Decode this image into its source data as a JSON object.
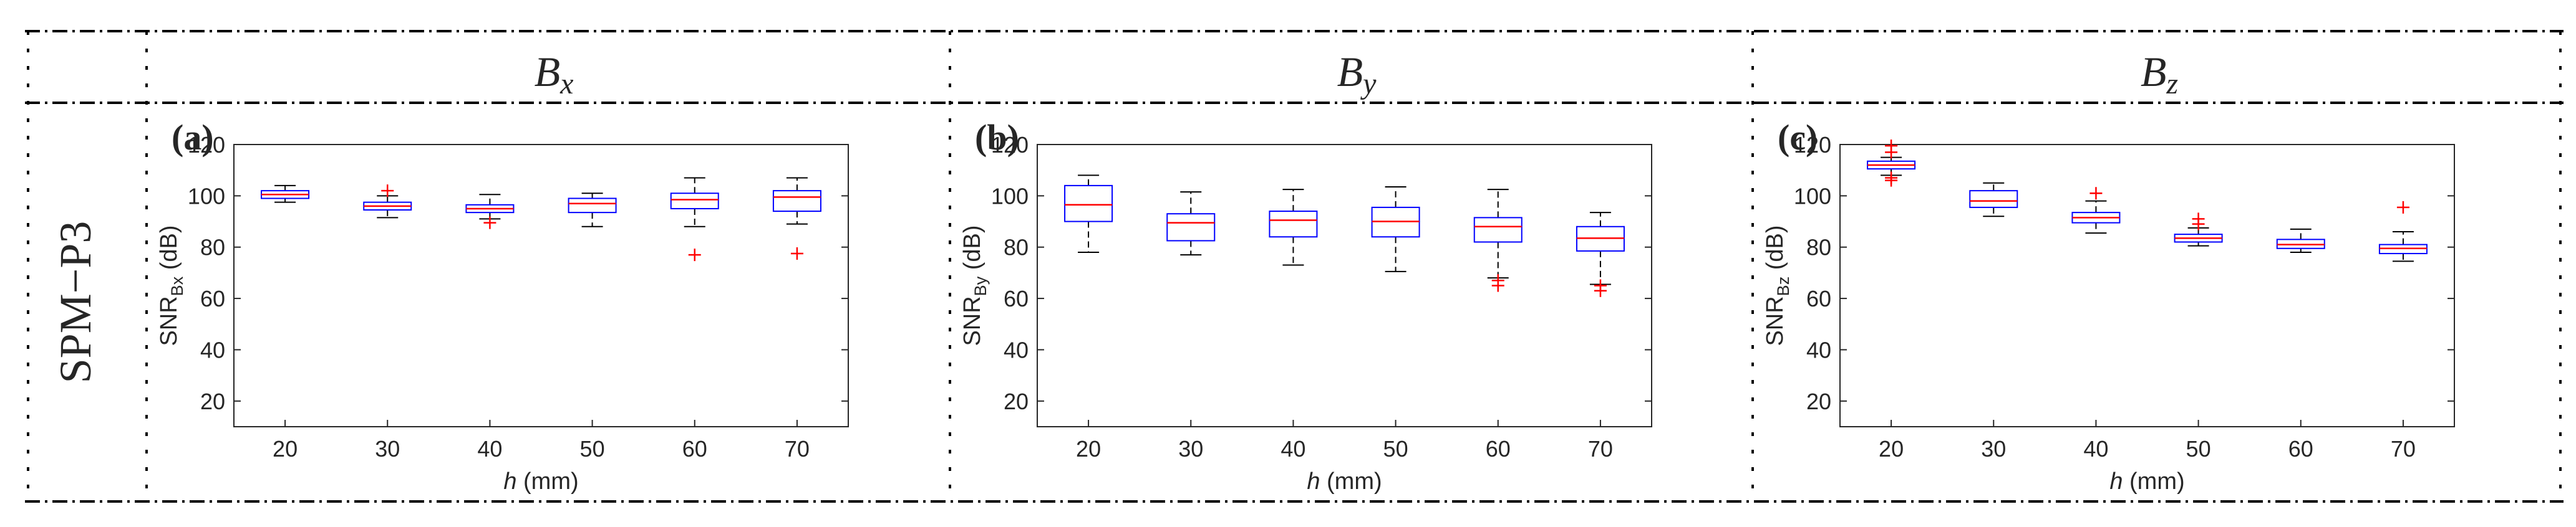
{
  "row_label": "SPM−P3",
  "columns": [
    {
      "header_base": "B",
      "header_sub": "x"
    },
    {
      "header_base": "B",
      "header_sub": "y"
    },
    {
      "header_base": "B",
      "header_sub": "z"
    }
  ],
  "colors": {
    "box": "#0000ff",
    "median": "#ff0000",
    "whisker": "#000000",
    "outlier": "#ff0000",
    "axis": "#262626",
    "border": "#000000"
  },
  "chart_data": [
    {
      "type": "boxplot",
      "panel_label": "(a)",
      "ylabel_base": "SNR",
      "ylabel_sub": "Bx",
      "ylabel_unit": " (dB)",
      "xlabel_var": "h",
      "xlabel_unit": " (mm)",
      "categories": [
        "20",
        "30",
        "40",
        "50",
        "60",
        "70"
      ],
      "ylim": [
        10,
        120
      ],
      "yticks": [
        20,
        40,
        60,
        80,
        100,
        120
      ],
      "boxes": [
        {
          "whislo": 97.5,
          "q1": 99,
          "med": 100.5,
          "q3": 102,
          "whishi": 104,
          "fliers": []
        },
        {
          "whislo": 91.5,
          "q1": 94.5,
          "med": 96,
          "q3": 97.5,
          "whishi": 100,
          "fliers": [
            102
          ]
        },
        {
          "whislo": 91,
          "q1": 93.5,
          "med": 95,
          "q3": 96.5,
          "whishi": 100.5,
          "fliers": [
            89.5
          ]
        },
        {
          "whislo": 88,
          "q1": 93.5,
          "med": 97,
          "q3": 99,
          "whishi": 101,
          "fliers": []
        },
        {
          "whislo": 88,
          "q1": 95,
          "med": 98.5,
          "q3": 101,
          "whishi": 107,
          "fliers": [
            77
          ]
        },
        {
          "whislo": 89,
          "q1": 94,
          "med": 99.5,
          "q3": 102,
          "whishi": 107,
          "fliers": [
            77.5
          ]
        }
      ]
    },
    {
      "type": "boxplot",
      "panel_label": "(b)",
      "ylabel_base": "SNR",
      "ylabel_sub": "By",
      "ylabel_unit": " (dB)",
      "xlabel_var": "h",
      "xlabel_unit": " (mm)",
      "categories": [
        "20",
        "30",
        "40",
        "50",
        "60",
        "70"
      ],
      "ylim": [
        10,
        120
      ],
      "yticks": [
        20,
        40,
        60,
        80,
        100,
        120
      ],
      "boxes": [
        {
          "whislo": 78,
          "q1": 90,
          "med": 96.5,
          "q3": 104,
          "whishi": 108,
          "fliers": []
        },
        {
          "whislo": 77,
          "q1": 82.5,
          "med": 89.5,
          "q3": 93,
          "whishi": 101.5,
          "fliers": []
        },
        {
          "whislo": 73,
          "q1": 84,
          "med": 90.5,
          "q3": 94,
          "whishi": 102.5,
          "fliers": []
        },
        {
          "whislo": 70.5,
          "q1": 84,
          "med": 90,
          "q3": 95.5,
          "whishi": 103.5,
          "fliers": []
        },
        {
          "whislo": 68,
          "q1": 82,
          "med": 88,
          "q3": 91.5,
          "whishi": 102.5,
          "fliers": [
            65,
            67
          ]
        },
        {
          "whislo": 65.5,
          "q1": 78.5,
          "med": 83.5,
          "q3": 88,
          "whishi": 93.5,
          "fliers": [
            63,
            65
          ]
        }
      ]
    },
    {
      "type": "boxplot",
      "panel_label": "(c)",
      "ylabel_base": "SNR",
      "ylabel_sub": "Bz",
      "ylabel_unit": " (dB)",
      "xlabel_var": "h",
      "xlabel_unit": " (mm)",
      "categories": [
        "20",
        "30",
        "40",
        "50",
        "60",
        "70"
      ],
      "ylim": [
        10,
        120
      ],
      "yticks": [
        20,
        40,
        60,
        80,
        100,
        120
      ],
      "boxes": [
        {
          "whislo": 108,
          "q1": 110.5,
          "med": 112,
          "q3": 113.5,
          "whishi": 115,
          "fliers": [
            106,
            107,
            117,
            119.5
          ]
        },
        {
          "whislo": 92,
          "q1": 95.5,
          "med": 98,
          "q3": 102,
          "whishi": 105,
          "fliers": []
        },
        {
          "whislo": 85.5,
          "q1": 89.5,
          "med": 91.5,
          "q3": 93.5,
          "whishi": 98,
          "fliers": [
            101
          ]
        },
        {
          "whislo": 80.5,
          "q1": 82,
          "med": 83.5,
          "q3": 85,
          "whishi": 87.5,
          "fliers": [
            89,
            91
          ]
        },
        {
          "whislo": 78,
          "q1": 79.5,
          "med": 81,
          "q3": 83,
          "whishi": 87,
          "fliers": []
        },
        {
          "whislo": 74.5,
          "q1": 77.5,
          "med": 79.5,
          "q3": 81,
          "whishi": 86,
          "fliers": [
            95.5
          ]
        }
      ]
    }
  ]
}
